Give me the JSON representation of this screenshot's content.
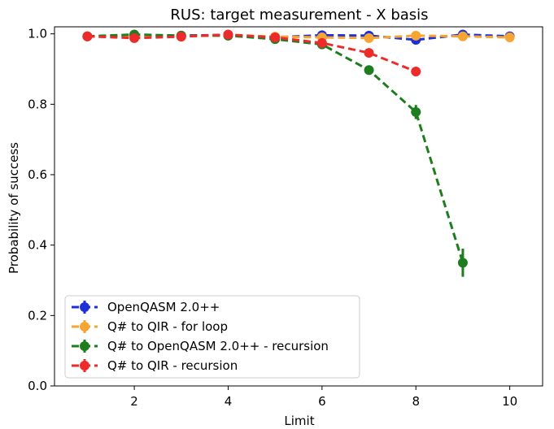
{
  "chart_data": {
    "type": "line",
    "title": "RUS: target measurement - X basis",
    "xlabel": "Limit",
    "ylabel": "Probability of success",
    "xlim": [
      0.3,
      10.7
    ],
    "ylim": [
      0.0,
      1.02
    ],
    "xticks": [
      2,
      4,
      6,
      8,
      10
    ],
    "yticks": [
      0.0,
      0.2,
      0.4,
      0.6,
      0.8,
      1.0
    ],
    "xtick_labels": [
      "2",
      "4",
      "6",
      "8",
      "10"
    ],
    "ytick_labels": [
      "0.0",
      "0.2",
      "0.4",
      "0.6",
      "0.8",
      "1.0"
    ],
    "grid": false,
    "legend_position": "lower-left",
    "series": [
      {
        "name": "OpenQASM 2.0++",
        "color": "#1f2fd8",
        "x": [
          1,
          2,
          3,
          4,
          5,
          6,
          7,
          8,
          9,
          10
        ],
        "y": [
          0.993,
          0.995,
          0.995,
          0.997,
          0.99,
          0.996,
          0.995,
          0.983,
          0.998,
          0.993
        ],
        "err": [
          0.004,
          0.003,
          0.003,
          0.003,
          0.004,
          0.003,
          0.003,
          0.006,
          0.002,
          0.004
        ]
      },
      {
        "name": "Q# to QIR - for loop",
        "color": "#f5a531",
        "x": [
          1,
          2,
          3,
          4,
          5,
          6,
          7,
          8,
          9,
          10
        ],
        "y": [
          0.993,
          0.995,
          0.993,
          0.996,
          0.992,
          0.99,
          0.988,
          0.995,
          0.993,
          0.99
        ],
        "err": [
          0.004,
          0.003,
          0.004,
          0.003,
          0.004,
          0.004,
          0.004,
          0.003,
          0.003,
          0.004
        ]
      },
      {
        "name": "Q# to OpenQASM 2.0++ - recursion",
        "color": "#1e7d1e",
        "x": [
          1,
          2,
          3,
          4,
          5,
          6,
          7,
          8,
          9
        ],
        "y": [
          0.993,
          0.998,
          0.995,
          0.995,
          0.985,
          0.97,
          0.897,
          0.778,
          0.35
        ],
        "err": [
          0.004,
          0.003,
          0.004,
          0.004,
          0.006,
          0.008,
          0.012,
          0.02,
          0.04
        ]
      },
      {
        "name": "Q# to QIR - recursion",
        "color": "#ee2b2b",
        "x": [
          1,
          2,
          3,
          4,
          5,
          6,
          7,
          8
        ],
        "y": [
          0.993,
          0.988,
          0.992,
          0.998,
          0.99,
          0.974,
          0.946,
          0.893
        ],
        "err": [
          0.004,
          0.005,
          0.004,
          0.002,
          0.004,
          0.007,
          0.009,
          0.012
        ]
      }
    ]
  }
}
